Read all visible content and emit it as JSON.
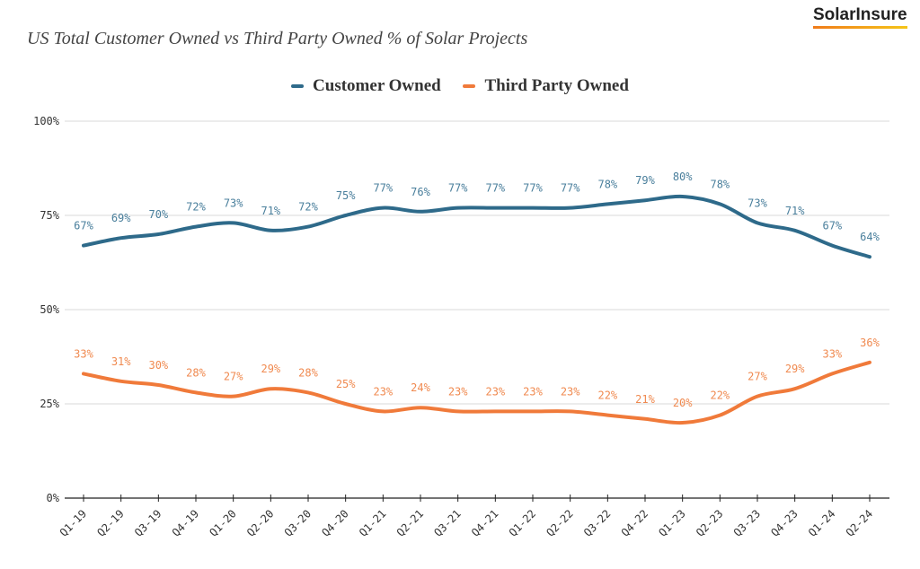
{
  "logo": {
    "text": "SolarInsure"
  },
  "chart_data": {
    "type": "line",
    "title": "US Total Customer Owned vs Third Party Owned % of Solar Projects",
    "categories": [
      "Q1-19",
      "Q2-19",
      "Q3-19",
      "Q4-19",
      "Q1-20",
      "Q2-20",
      "Q3-20",
      "Q4-20",
      "Q1-21",
      "Q2-21",
      "Q3-21",
      "Q4-21",
      "Q1-22",
      "Q2-22",
      "Q3-22",
      "Q4-22",
      "Q1-23",
      "Q2-23",
      "Q3-23",
      "Q4-23",
      "Q1-24",
      "Q2-24"
    ],
    "series": [
      {
        "name": "Customer Owned",
        "color": "#2e6a8a",
        "label_color": "#4a7f9c",
        "values": [
          67,
          69,
          70,
          72,
          73,
          71,
          72,
          75,
          77,
          76,
          77,
          77,
          77,
          77,
          78,
          79,
          80,
          78,
          73,
          71,
          67,
          64
        ]
      },
      {
        "name": "Third Party Owned",
        "color": "#f07a3a",
        "label_color": "#f08a50",
        "values": [
          33,
          31,
          30,
          28,
          27,
          29,
          28,
          25,
          23,
          24,
          23,
          23,
          23,
          23,
          22,
          21,
          20,
          22,
          27,
          29,
          33,
          36
        ]
      }
    ],
    "ylim": [
      0,
      100
    ],
    "yticks": [
      "0%",
      "25%",
      "50%",
      "75%",
      "100%"
    ],
    "grid": true,
    "legend": "top-center",
    "data_labels": true
  }
}
